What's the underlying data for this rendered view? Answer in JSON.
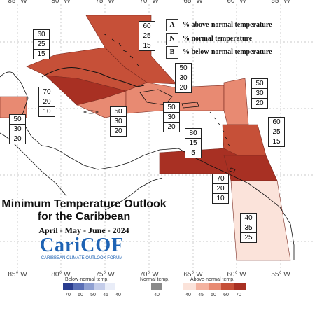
{
  "map": {
    "longitude_labels": [
      "85° W",
      "80° W",
      "75° W",
      "70° W",
      "65° W",
      "60° W",
      "55° W"
    ]
  },
  "legend_keys": [
    {
      "key": "A",
      "text": "% above-normal temperature"
    },
    {
      "key": "N",
      "text": "% normal temperature"
    },
    {
      "key": "B",
      "text": "% below-normal temperature"
    }
  ],
  "regions": [
    {
      "name": "bahamas",
      "above": "60",
      "normal": "25",
      "below": "15",
      "color": "#c65038"
    },
    {
      "name": "cuba",
      "above": "60",
      "normal": "25",
      "below": "15",
      "color": "#c65038"
    },
    {
      "name": "cayman-islands",
      "above": "70",
      "normal": "20",
      "below": "10",
      "color": "#a83023"
    },
    {
      "name": "belize",
      "above": "50",
      "normal": "30",
      "below": "20",
      "color": "#e88a72"
    },
    {
      "name": "jamaica",
      "above": "50",
      "normal": "30",
      "below": "20",
      "color": "#e88a72"
    },
    {
      "name": "hispaniola",
      "above": "50",
      "normal": "30",
      "below": "20",
      "color": "#e88a72"
    },
    {
      "name": "turks-and-caicos",
      "above": "50",
      "normal": "30",
      "below": "20",
      "color": "#e88a72"
    },
    {
      "name": "leeward-islands",
      "above": "50",
      "normal": "30",
      "below": "20",
      "color": "#e88a72"
    },
    {
      "name": "windward-islands",
      "above": "60",
      "normal": "25",
      "below": "15",
      "color": "#c65038"
    },
    {
      "name": "aruba-curacao",
      "above": "80",
      "normal": "15",
      "below": "5",
      "color": "#a83023"
    },
    {
      "name": "trinidad-tobago",
      "above": "70",
      "normal": "20",
      "below": "10",
      "color": "#a83023"
    },
    {
      "name": "guianas",
      "above": "40",
      "normal": "35",
      "below": "25",
      "color": "#fbe3da"
    }
  ],
  "title": {
    "line1": "Minimum Temperature Outlook",
    "line2": "for the Caribbean",
    "period": "April - May - June - 2024"
  },
  "logo": {
    "name": "CariCOF",
    "subtitle": "CARIBBEAN CLIMATE OUTLOOK FORUM"
  },
  "colorbar": {
    "below": {
      "title": "Below-normal temp.",
      "ticks": [
        "70",
        "60",
        "50",
        "45",
        "40"
      ],
      "colors": [
        "#2a3d8f",
        "#5a6fb6",
        "#8fa0d2",
        "#c4cdea",
        "#e9edf8"
      ]
    },
    "normal": {
      "title": "Normal temp.",
      "ticks": [
        "40"
      ],
      "colors": [
        "#8a8a8a"
      ]
    },
    "above": {
      "title": "Above-normal temp.",
      "ticks": [
        "40",
        "45",
        "50",
        "60",
        "70"
      ],
      "colors": [
        "#fbe3da",
        "#f4b3a0",
        "#e88a72",
        "#c65038",
        "#a83023"
      ]
    }
  }
}
